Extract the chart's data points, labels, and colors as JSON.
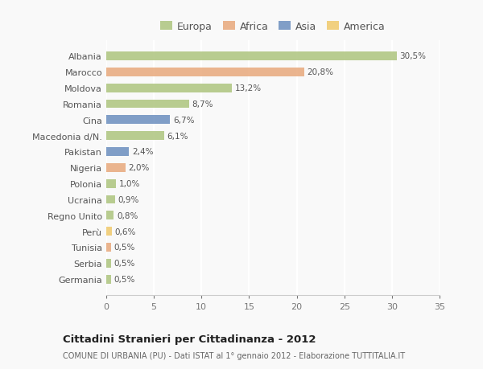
{
  "categories": [
    "Albania",
    "Marocco",
    "Moldova",
    "Romania",
    "Cina",
    "Macedonia d/N.",
    "Pakistan",
    "Nigeria",
    "Polonia",
    "Ucraina",
    "Regno Unito",
    "Perù",
    "Tunisia",
    "Serbia",
    "Germania"
  ],
  "values": [
    30.5,
    20.8,
    13.2,
    8.7,
    6.7,
    6.1,
    2.4,
    2.0,
    1.0,
    0.9,
    0.8,
    0.6,
    0.5,
    0.5,
    0.5
  ],
  "labels": [
    "30,5%",
    "20,8%",
    "13,2%",
    "8,7%",
    "6,7%",
    "6,1%",
    "2,4%",
    "2,0%",
    "1,0%",
    "0,9%",
    "0,8%",
    "0,6%",
    "0,5%",
    "0,5%",
    "0,5%"
  ],
  "colors": [
    "#adc47e",
    "#e8a87c",
    "#adc47e",
    "#adc47e",
    "#6b8ebf",
    "#adc47e",
    "#6b8ebf",
    "#e8a87c",
    "#adc47e",
    "#adc47e",
    "#adc47e",
    "#f0c96b",
    "#e8a87c",
    "#adc47e",
    "#adc47e"
  ],
  "legend_labels": [
    "Europa",
    "Africa",
    "Asia",
    "America"
  ],
  "legend_colors": [
    "#adc47e",
    "#e8a87c",
    "#6b8ebf",
    "#f0c96b"
  ],
  "title": "Cittadini Stranieri per Cittadinanza - 2012",
  "subtitle": "COMUNE DI URBANIA (PU) - Dati ISTAT al 1° gennaio 2012 - Elaborazione TUTTITALIA.IT",
  "xlim": [
    0,
    35
  ],
  "xticks": [
    0,
    5,
    10,
    15,
    20,
    25,
    30,
    35
  ],
  "bg_color": "#f9f9f9",
  "grid_color": "#ffffff",
  "bar_height": 0.55
}
